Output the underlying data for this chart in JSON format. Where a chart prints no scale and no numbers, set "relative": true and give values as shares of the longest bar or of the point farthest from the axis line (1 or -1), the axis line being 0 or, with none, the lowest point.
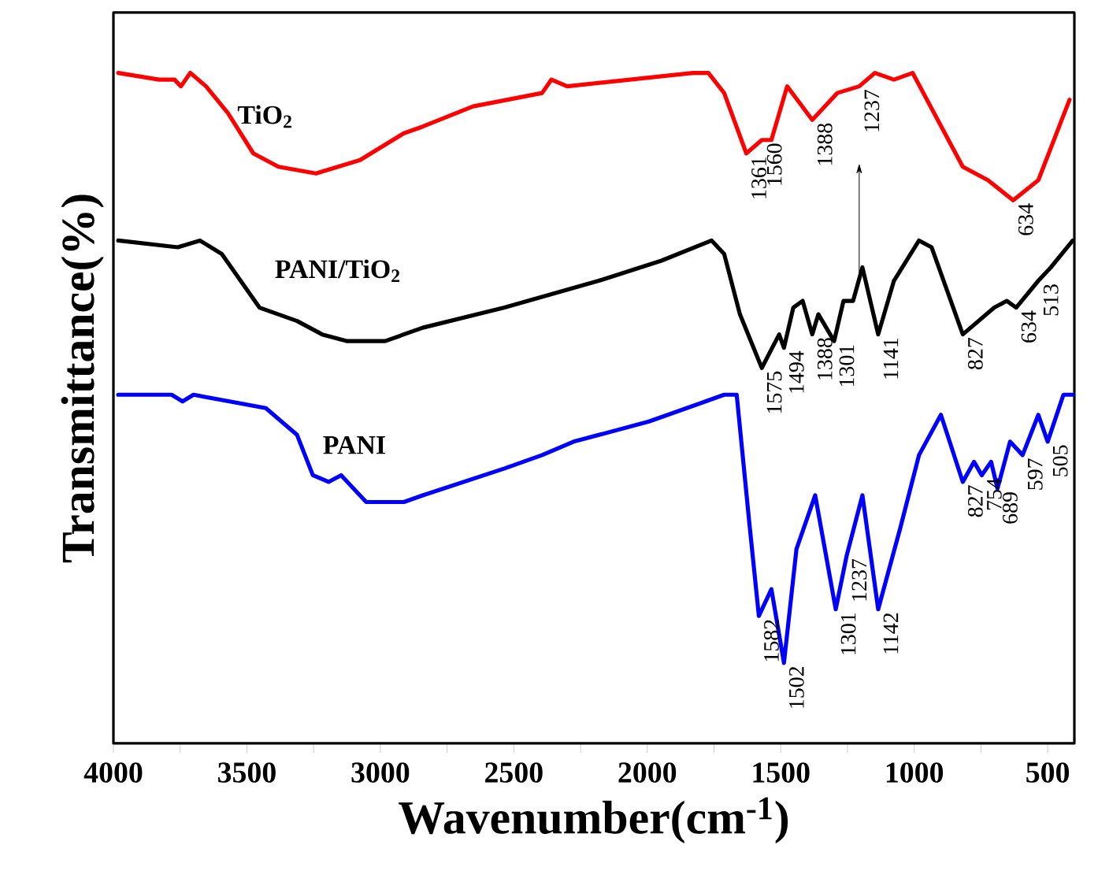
{
  "chart_data": {
    "type": "line",
    "relative": true,
    "xlabel": "Wavenumber(cm$^{-1}$)",
    "ylabel": "Transmittance(%)",
    "xlim": [
      4000,
      400
    ],
    "xticks": [
      4000,
      {
        "value": 3750,
        "label": null
      },
      3500,
      {
        "value": 3250,
        "label": null
      },
      3000,
      {
        "value": 2750,
        "label": null
      },
      2500,
      {
        "value": 2250,
        "label": null
      },
      2000,
      {
        "value": 1750,
        "label": null
      },
      1500,
      {
        "value": 1250,
        "label": null
      },
      1000,
      {
        "value": 750,
        "label": null
      },
      500
    ],
    "series": [
      {
        "name": "TiO$_{2}$",
        "color": "#ff0000",
        "x": [
          3982,
          3829,
          3771,
          3747,
          3712,
          3653,
          3571,
          3476,
          3382,
          3241,
          3076,
          2912,
          2841,
          2653,
          2394,
          2359,
          2300,
          2065,
          1829,
          1771,
          1712,
          1629,
          1571,
          1535,
          1476,
          1382,
          1288,
          1206,
          1147,
          1076,
          1006,
          912,
          818,
          724,
          629,
          535,
          418
        ],
        "values": [
          1.0,
          0.99,
          0.99,
          0.98,
          1.0,
          0.98,
          0.94,
          0.88,
          0.86,
          0.85,
          0.87,
          0.91,
          0.92,
          0.95,
          0.97,
          0.99,
          0.98,
          0.99,
          1.0,
          1.0,
          0.97,
          0.88,
          0.9,
          0.9,
          0.98,
          0.93,
          0.97,
          0.98,
          1.0,
          0.99,
          1.0,
          0.93,
          0.86,
          0.84,
          0.81,
          0.84,
          0.96
        ]
      },
      {
        "name": "PANI/TiO$_{2}$",
        "color": "#000000",
        "x": [
          3982,
          3759,
          3676,
          3594,
          3453,
          3312,
          3218,
          3124,
          2982,
          2841,
          2535,
          2182,
          1947,
          1759,
          1712,
          1653,
          1571,
          1506,
          1488,
          1453,
          1418,
          1382,
          1359,
          1300,
          1265,
          1229,
          1194,
          1135,
          1076,
          982,
          935,
          818,
          700,
          653,
          618,
          535,
          488,
          406
        ],
        "values": [
          0.75,
          0.74,
          0.75,
          0.73,
          0.65,
          0.63,
          0.61,
          0.6,
          0.6,
          0.62,
          0.65,
          0.69,
          0.72,
          0.75,
          0.73,
          0.64,
          0.56,
          0.61,
          0.59,
          0.65,
          0.66,
          0.61,
          0.64,
          0.6,
          0.66,
          0.66,
          0.71,
          0.61,
          0.69,
          0.75,
          0.74,
          0.61,
          0.65,
          0.66,
          0.65,
          0.69,
          0.71,
          0.75
        ]
      },
      {
        "name": "PANI",
        "color": "#0000ff",
        "x": [
          3982,
          3782,
          3741,
          3700,
          3429,
          3312,
          3253,
          3194,
          3147,
          3053,
          2912,
          2841,
          2535,
          2394,
          2276,
          1994,
          1782,
          1712,
          1665,
          1618,
          1582,
          1535,
          1488,
          1441,
          1371,
          1294,
          1253,
          1194,
          1135,
          1053,
          982,
          900,
          818,
          776,
          747,
          712,
          688,
          641,
          594,
          535,
          500,
          441,
          406
        ],
        "values": [
          0.52,
          0.52,
          0.51,
          0.52,
          0.5,
          0.46,
          0.4,
          0.39,
          0.4,
          0.36,
          0.36,
          0.37,
          0.41,
          0.43,
          0.45,
          0.48,
          0.51,
          0.52,
          0.52,
          0.33,
          0.19,
          0.23,
          0.12,
          0.29,
          0.37,
          0.2,
          0.28,
          0.37,
          0.2,
          0.32,
          0.43,
          0.49,
          0.39,
          0.42,
          0.4,
          0.42,
          0.38,
          0.45,
          0.43,
          0.49,
          0.45,
          0.52,
          0.52
        ]
      }
    ],
    "annotations": [
      {
        "text": "1361",
        "x": 1629,
        "y": 0.88
      },
      {
        "text": "1560",
        "x": 1571,
        "y": 0.9
      },
      {
        "text": "1388",
        "x": 1382,
        "y": 0.93
      },
      {
        "text": "1237",
        "x": 1206,
        "y": 0.98
      },
      {
        "text": "634",
        "x": 629,
        "y": 0.81
      },
      {
        "text": "1575",
        "x": 1571,
        "y": 0.56
      },
      {
        "text": "1494",
        "x": 1488,
        "y": 0.59
      },
      {
        "text": "1388",
        "x": 1382,
        "y": 0.61
      },
      {
        "text": "1301",
        "x": 1300,
        "y": 0.6
      },
      {
        "text": "1141",
        "x": 1135,
        "y": 0.61
      },
      {
        "text": "827",
        "x": 818,
        "y": 0.61
      },
      {
        "text": "634",
        "x": 618,
        "y": 0.65
      },
      {
        "text": "513",
        "x": 535,
        "y": 0.69
      },
      {
        "text": "1582",
        "x": 1582,
        "y": 0.19
      },
      {
        "text": "1502",
        "x": 1488,
        "y": 0.12
      },
      {
        "text": "1301",
        "x": 1294,
        "y": 0.2
      },
      {
        "text": "1237",
        "x": 1253,
        "y": 0.28
      },
      {
        "text": "1142",
        "x": 1135,
        "y": 0.2
      },
      {
        "text": "827",
        "x": 818,
        "y": 0.39
      },
      {
        "text": "754",
        "x": 747,
        "y": 0.4
      },
      {
        "text": "689",
        "x": 688,
        "y": 0.38
      },
      {
        "text": "597",
        "x": 594,
        "y": 0.43
      },
      {
        "text": "505",
        "x": 500,
        "y": 0.45
      }
    ]
  }
}
